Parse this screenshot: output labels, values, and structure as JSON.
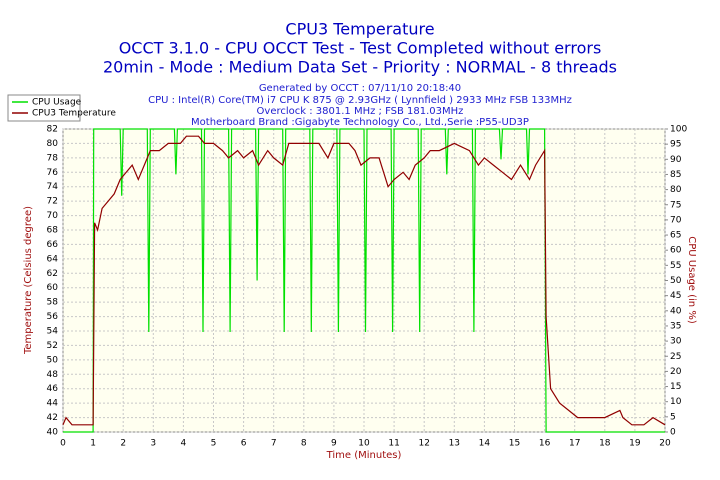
{
  "chart_data": {
    "type": "line",
    "title": "CPU3 Temperature",
    "subtitle": [
      "OCCT 3.1.0 - CPU OCCT Test - Test Completed without errors",
      "20min - Mode : Medium Data Set - Priority : NORMAL - 8 threads"
    ],
    "info": [
      "Generated by OCCT : 07/11/10 20:18:40",
      "CPU : Intel(R) Core(TM) i7 CPU K 875 @ 2.93GHz ( Lynnfield ) 2933 MHz FSB 133MHz",
      "Overclock : 3801.1 MHz ; FSB 181.03MHz",
      "Motherboard Brand :Gigabyte Technology Co., Ltd.,Serie :P55-UD3P"
    ],
    "xlabel": "Time (Minutes)",
    "ylabel": "Temperature (Celsius degree)",
    "y2label": "CPU Usage (in %)",
    "xlim": [
      0,
      20
    ],
    "xticks": [
      0,
      1,
      2,
      3,
      4,
      5,
      6,
      7,
      8,
      9,
      10,
      11,
      12,
      13,
      14,
      15,
      16,
      17,
      18,
      19,
      20
    ],
    "ylim": [
      40,
      82
    ],
    "yticks": [
      40,
      42,
      44,
      46,
      48,
      50,
      52,
      54,
      56,
      58,
      60,
      62,
      64,
      66,
      68,
      70,
      72,
      74,
      76,
      78,
      80,
      82
    ],
    "y2lim": [
      0,
      100
    ],
    "y2ticks": [
      0,
      5,
      10,
      15,
      20,
      25,
      30,
      35,
      40,
      45,
      50,
      55,
      60,
      65,
      70,
      75,
      80,
      85,
      90,
      95,
      100
    ],
    "grid": true,
    "legend": "top-left",
    "series": [
      {
        "name": "CPU Usage",
        "color": "#00e000",
        "axis": "y2",
        "x": [
          0,
          1,
          1.02,
          1.9,
          1.95,
          2.0,
          2.8,
          2.85,
          2.9,
          3.7,
          3.75,
          3.8,
          4.6,
          4.65,
          4.7,
          5.5,
          5.55,
          5.6,
          6.4,
          6.45,
          6.5,
          7.3,
          7.35,
          7.4,
          8.2,
          8.25,
          8.3,
          9.1,
          9.15,
          9.2,
          10.0,
          10.05,
          10.1,
          10.9,
          10.95,
          11.0,
          11.8,
          11.85,
          11.9,
          12.7,
          12.75,
          12.8,
          13.6,
          13.65,
          13.7,
          14.5,
          14.55,
          14.6,
          15.4,
          15.45,
          15.5,
          16.0,
          16.05,
          20
        ],
        "values": [
          0,
          0,
          100,
          100,
          78,
          100,
          100,
          33,
          100,
          100,
          85,
          100,
          100,
          33,
          100,
          100,
          33,
          100,
          100,
          50,
          100,
          100,
          33,
          100,
          100,
          33,
          100,
          100,
          33,
          100,
          100,
          33,
          100,
          100,
          33,
          100,
          100,
          33,
          100,
          100,
          85,
          100,
          100,
          33,
          100,
          100,
          90,
          100,
          100,
          85,
          100,
          100,
          0,
          0
        ]
      },
      {
        "name": "CPU3 Temperature",
        "color": "#900000",
        "axis": "y",
        "x": [
          0,
          0.1,
          0.3,
          1,
          1.05,
          1.15,
          1.3,
          1.5,
          1.7,
          1.9,
          2.1,
          2.3,
          2.5,
          2.7,
          2.9,
          3.2,
          3.5,
          3.9,
          4.1,
          4.5,
          4.7,
          5,
          5.3,
          5.5,
          5.8,
          6,
          6.3,
          6.5,
          6.8,
          7,
          7.3,
          7.5,
          8,
          8.5,
          8.8,
          9,
          9.5,
          9.7,
          9.9,
          10.2,
          10.5,
          10.8,
          11,
          11.3,
          11.5,
          11.7,
          12,
          12.2,
          12.5,
          13,
          13.5,
          13.8,
          14,
          14.3,
          14.6,
          14.9,
          15.2,
          15.5,
          15.7,
          16,
          16.05,
          16.2,
          16.5,
          16.8,
          17.1,
          17.5,
          18,
          18.5,
          18.6,
          18.9,
          19.3,
          19.6,
          20
        ],
        "values": [
          41,
          42,
          41,
          41,
          69,
          68,
          71,
          72,
          73,
          75,
          76,
          77,
          75,
          77,
          79,
          79,
          80,
          80,
          81,
          81,
          80,
          80,
          79,
          78,
          79,
          78,
          79,
          77,
          79,
          78,
          77,
          80,
          80,
          80,
          78,
          80,
          80,
          79,
          77,
          78,
          78,
          74,
          75,
          76,
          75,
          77,
          78,
          79,
          79,
          80,
          79,
          77,
          78,
          77,
          76,
          75,
          77,
          75,
          77,
          79,
          56,
          46,
          44,
          43,
          42,
          42,
          42,
          43,
          42,
          41,
          41,
          42,
          41
        ]
      }
    ]
  }
}
